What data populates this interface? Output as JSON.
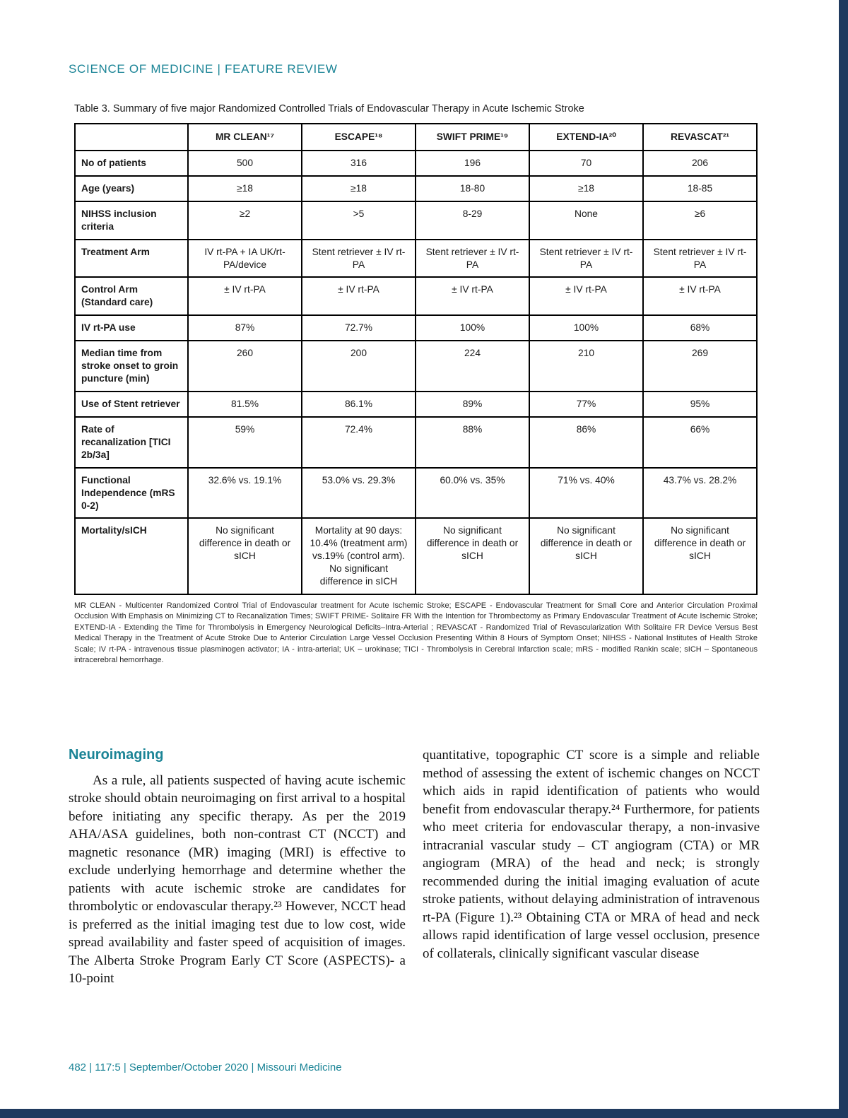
{
  "colors": {
    "accent": "#1b8496",
    "navy": "#203a5f"
  },
  "page": {
    "kicker": "SCIENCE OF MEDICINE | FEATURE REVIEW",
    "footer": "482 | 117:5 | September/October 2020 | Missouri Medicine"
  },
  "table": {
    "title": "Table 3. Summary of five major Randomized Controlled Trials of Endovascular Therapy in Acute Ischemic Stroke",
    "columns": [
      "",
      "MR CLEAN¹⁷",
      "ESCAPE¹⁸",
      "SWIFT PRIME¹⁹",
      "EXTEND-IA²⁰",
      "REVASCAT²¹"
    ],
    "rows": [
      {
        "label": "No of patients",
        "values": [
          "500",
          "316",
          "196",
          "70",
          "206"
        ]
      },
      {
        "label": "Age (years)",
        "values": [
          "≥18",
          "≥18",
          "18-80",
          "≥18",
          "18-85"
        ]
      },
      {
        "label": "NIHSS inclusion criteria",
        "values": [
          "≥2",
          ">5",
          "8-29",
          "None",
          "≥6"
        ]
      },
      {
        "label": "Treatment Arm",
        "values": [
          "IV rt-PA + IA UK/rt-PA/device",
          "Stent retriever ± IV rt-PA",
          "Stent retriever ± IV rt-PA",
          "Stent retriever ± IV rt-PA",
          "Stent retriever ± IV rt-PA"
        ]
      },
      {
        "label": "Control Arm (Standard care)",
        "values": [
          "± IV rt-PA",
          "± IV rt-PA",
          "± IV rt-PA",
          "± IV rt-PA",
          "± IV rt-PA"
        ]
      },
      {
        "label": "IV rt-PA use",
        "values": [
          "87%",
          "72.7%",
          "100%",
          "100%",
          "68%"
        ]
      },
      {
        "label": "Median time from stroke onset to groin puncture (min)",
        "values": [
          "260",
          "200",
          "224",
          "210",
          "269"
        ]
      },
      {
        "label": "Use of Stent retriever",
        "values": [
          "81.5%",
          "86.1%",
          "89%",
          "77%",
          "95%"
        ]
      },
      {
        "label": "Rate of recanalization [TICI 2b/3a]",
        "values": [
          "59%",
          "72.4%",
          "88%",
          "86%",
          "66%"
        ]
      },
      {
        "label": "Functional Independence (mRS 0-2)",
        "values": [
          "32.6% vs. 19.1%",
          "53.0% vs. 29.3%",
          "60.0% vs. 35%",
          "71% vs. 40%",
          "43.7% vs. 28.2%"
        ]
      },
      {
        "label": "Mortality/sICH",
        "values": [
          "No significant difference in death or sICH",
          "Mortality at 90 days: 10.4% (treatment arm) vs.19% (control arm). No significant difference in sICH",
          "No significant difference in death or sICH",
          "No significant difference in death or sICH",
          "No significant difference in death or sICH"
        ]
      }
    ],
    "footnote": "MR CLEAN - Multicenter Randomized Control Trial of Endovascular treatment for Acute Ischemic Stroke; ESCAPE - Endovascular Treatment for Small Core and Anterior Circulation Proximal Occlusion With Emphasis on Minimizing CT to Recanalization Times; SWIFT PRIME- Solitaire FR With the Intention for Thrombectomy as Primary Endovascular Treatment of Acute Ischemic Stroke; EXTEND-IA - Extending the Time for Thrombolysis in Emergency Neurological Deficits–Intra-Arterial ; REVASCAT - Randomized Trial of Revascularization With Solitaire FR Device Versus Best Medical Therapy in the Treatment of Acute Stroke Due to Anterior Circulation Large Vessel Occlusion Presenting Within 8 Hours of Symptom Onset; NIHSS - National Institutes of Health Stroke Scale; IV rt-PA - intravenous tissue plasminogen activator; IA - intra-arterial; UK – urokinase; TICI - Thrombolysis in Cerebral Infarction scale; mRS - modified Rankin scale; sICH – Spontaneous intracerebral hemorrhage."
  },
  "article": {
    "heading": "Neuroimaging",
    "left_paragraph": "As a rule, all patients suspected of having acute ischemic stroke should obtain neuroimaging on first arrival to a hospital before initiating any specific therapy. As per the 2019 AHA/ASA guidelines, both non-contrast CT (NCCT) and magnetic resonance (MR) imaging (MRI) is effective to exclude underlying hemorrhage and determine whether the patients with acute ischemic stroke are candidates for thrombolytic or endovascular therapy.²³ However, NCCT head is preferred as the initial imaging test due to low cost, wide spread availability and faster speed of acquisition of images. The Alberta Stroke Program Early CT Score (ASPECTS)- a 10-point",
    "right_paragraph": "quantitative, topographic CT score is a simple and reliable method of assessing the extent of ischemic changes on NCCT which aids in rapid identification of patients who would benefit from endovascular therapy.²⁴ Furthermore, for patients who meet criteria for endovascular therapy, a non-invasive intracranial vascular study – CT angiogram (CTA) or MR angiogram (MRA) of the head and neck; is strongly recommended during the initial imaging evaluation of acute stroke patients, without delaying administration of intravenous rt-PA (Figure 1).²³ Obtaining CTA or MRA of head and neck allows rapid identification of large vessel occlusion, presence of collaterals, clinically significant vascular disease"
  }
}
